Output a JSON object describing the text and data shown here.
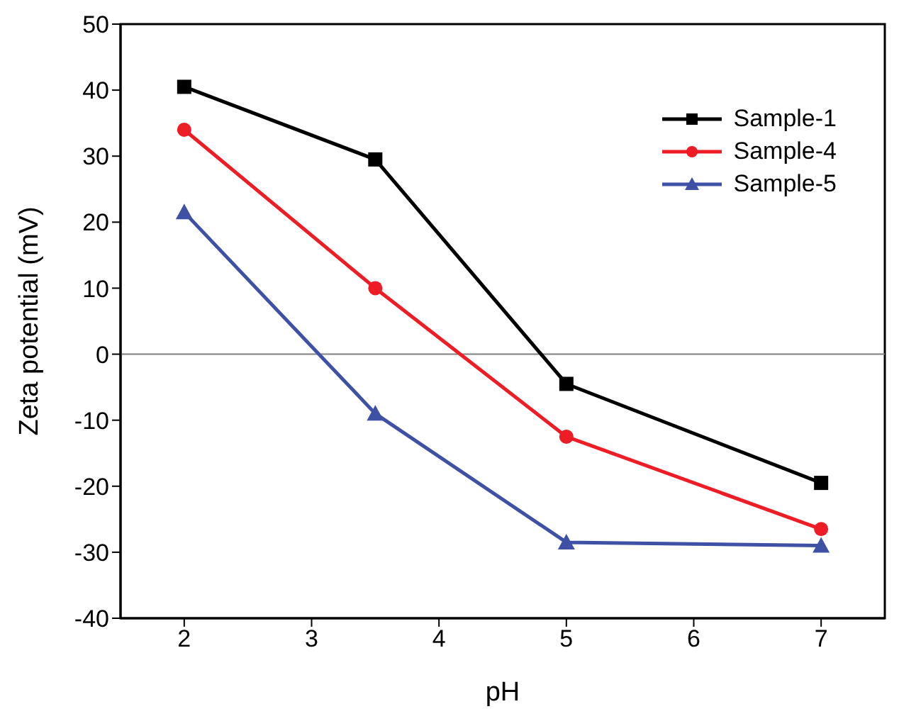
{
  "chart_data": {
    "type": "line",
    "xlabel": "pH",
    "ylabel": "Zeta potential (mV)",
    "x": [
      2,
      3.5,
      5,
      7
    ],
    "series": [
      {
        "name": "Sample-1",
        "color": "#000000",
        "marker": "square",
        "values": [
          40.5,
          29.5,
          -4.5,
          -19.5
        ]
      },
      {
        "name": "Sample-4",
        "color": "#ee1c24",
        "marker": "circle",
        "values": [
          34,
          10,
          -12.5,
          -26.5
        ]
      },
      {
        "name": "Sample-5",
        "color": "#3f51a5",
        "marker": "triangle",
        "values": [
          21.5,
          -9,
          -28.5,
          -29
        ]
      }
    ],
    "xlim": [
      1.5,
      7.5
    ],
    "xticks": [
      2,
      3,
      4,
      5,
      6,
      7
    ],
    "ylim": [
      -40,
      50
    ],
    "yticks": [
      -40,
      -30,
      -20,
      -10,
      0,
      10,
      20,
      30,
      40,
      50
    ],
    "ref_lines": [
      {
        "axis": "y",
        "value": 0,
        "color": "#808080"
      }
    ],
    "legend": "top right",
    "grid": false,
    "line_style": "solid"
  }
}
